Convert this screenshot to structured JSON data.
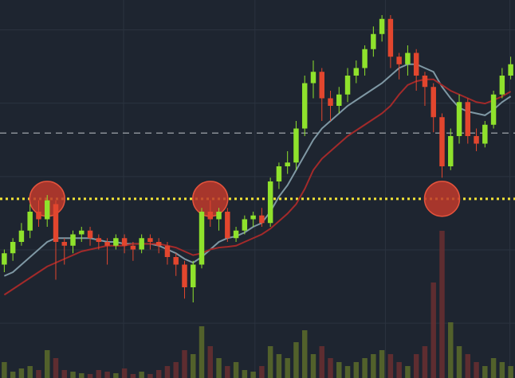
{
  "chart_data": {
    "type": "candlestick",
    "background": "#1e2530",
    "grid_color": "#2b333f",
    "xlim": [
      0,
      60
    ],
    "ylim": [
      0,
      100
    ],
    "volume_ylim": [
      0,
      200
    ],
    "grid_x": [
      14.4,
      29.7,
      44.9,
      59.4
    ],
    "grid_y": [
      14.5,
      33.9,
      53.3,
      72.7,
      92.1
    ],
    "up_color": "#8fe22c",
    "down_color": "#e2462e",
    "volume_up_color": "#5c6c2a",
    "volume_down_color": "#6a2f30",
    "open": [
      30,
      33,
      36,
      39,
      44,
      42,
      46,
      36,
      35,
      38,
      39,
      37,
      36,
      35,
      37,
      35,
      34,
      37,
      36,
      35,
      32,
      30,
      24,
      30,
      44,
      42,
      44,
      37,
      39,
      42,
      43,
      41,
      52,
      56,
      57,
      66,
      78,
      81,
      74,
      72,
      75,
      80,
      82,
      87,
      91,
      95,
      85,
      83,
      86,
      80,
      77,
      69,
      56,
      64,
      73,
      64,
      62,
      67,
      75,
      80
    ],
    "close": [
      33,
      36,
      39,
      44,
      42,
      47,
      36,
      35,
      38,
      39,
      37,
      36,
      35,
      37,
      35,
      34,
      37,
      36,
      35,
      32,
      30,
      24,
      30,
      44,
      42,
      44,
      37,
      39,
      42,
      43,
      41,
      52,
      56,
      57,
      66,
      78,
      81,
      74,
      72,
      75,
      80,
      82,
      87,
      91,
      95,
      85,
      83,
      86,
      80,
      77,
      69,
      56,
      64,
      73,
      64,
      62,
      67,
      75,
      80,
      83
    ],
    "high": [
      34,
      37,
      41,
      46,
      47,
      48.4,
      47,
      37,
      39,
      40,
      40,
      38,
      37,
      38,
      38,
      36,
      38,
      38,
      37,
      36,
      33,
      31,
      31,
      45,
      47,
      45,
      45,
      40,
      43,
      44,
      45,
      53,
      57,
      60,
      68,
      80,
      84,
      82,
      76,
      77,
      82,
      84,
      88,
      93,
      96,
      96,
      86,
      88,
      87,
      81,
      78,
      70,
      66,
      75,
      74,
      66,
      68,
      76,
      82,
      85
    ],
    "low": [
      28,
      31,
      35,
      37,
      40,
      40,
      26,
      30,
      33,
      36,
      35,
      34,
      30,
      34,
      33,
      31,
      33,
      34,
      33,
      30,
      27,
      21,
      20,
      29,
      40,
      39,
      36,
      36,
      38,
      40,
      40,
      40,
      50,
      54,
      55,
      64,
      74,
      68,
      68,
      70,
      73,
      78,
      80,
      85,
      89,
      82,
      79,
      80,
      76,
      72,
      65,
      53,
      55,
      62,
      62,
      60,
      61,
      66,
      74,
      79
    ],
    "volume": [
      20,
      8,
      12,
      15,
      10,
      35,
      25,
      10,
      8,
      6,
      5,
      10,
      8,
      6,
      12,
      5,
      8,
      5,
      10,
      15,
      20,
      35,
      30,
      65,
      40,
      25,
      15,
      20,
      10,
      8,
      15,
      40,
      30,
      25,
      45,
      60,
      30,
      40,
      25,
      20,
      15,
      20,
      25,
      30,
      35,
      30,
      20,
      15,
      30,
      40,
      120,
      185,
      70,
      40,
      30,
      20,
      15,
      25,
      20,
      15
    ],
    "series": [
      {
        "color": "#7f98a4",
        "values": [
          27,
          28,
          30,
          32,
          34,
          36,
          37,
          37,
          37,
          37,
          37,
          36.5,
          36,
          36,
          35.5,
          35.5,
          35.5,
          35.5,
          35,
          34,
          33,
          31.5,
          30.5,
          32,
          34,
          36,
          37,
          37.5,
          38.5,
          40,
          41,
          44,
          48,
          51,
          55,
          59,
          63,
          66,
          68,
          70,
          72,
          73.5,
          75,
          76.5,
          78,
          80,
          82,
          83,
          83,
          82,
          81,
          77,
          74,
          71.5,
          70.5,
          70,
          69.5,
          71,
          73,
          74.5
        ]
      },
      {
        "color": "#a32a2a",
        "values": [
          22,
          23.5,
          25,
          26.5,
          28,
          29.5,
          30.5,
          31.5,
          32.5,
          33.5,
          34,
          34.5,
          35,
          35,
          35,
          35.5,
          35.5,
          35.5,
          35.5,
          35,
          34.5,
          33.5,
          32.5,
          33,
          34,
          34.5,
          34.7,
          35,
          36,
          37,
          38,
          39.5,
          41.5,
          43.5,
          46,
          50,
          55,
          58,
          60,
          62,
          64,
          65.5,
          67,
          68.5,
          70,
          72,
          75,
          77.5,
          78.5,
          79,
          79,
          77.5,
          76,
          75,
          74,
          73,
          72.6,
          73.5,
          74.5,
          75.8
        ]
      }
    ],
    "levels": [
      {
        "value": 47.4,
        "color": "#f2e436",
        "style": "dotted"
      },
      {
        "value": 64.8,
        "color": "#8a9096",
        "style": "dashed"
      }
    ],
    "highlight_indices": [
      5,
      24,
      51
    ],
    "highlight_color": "#c0392b"
  }
}
